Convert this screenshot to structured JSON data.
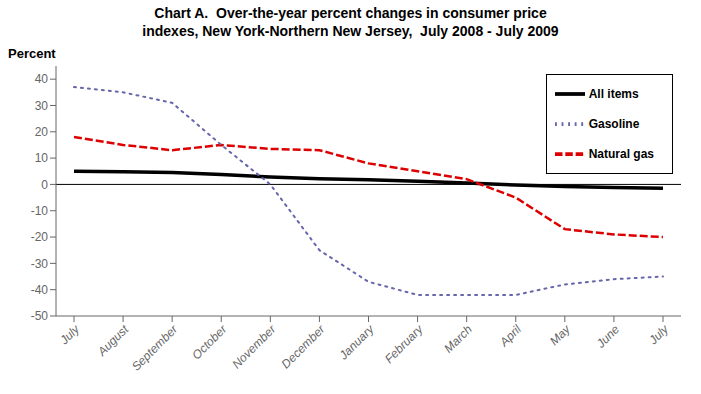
{
  "chart_data": {
    "type": "line",
    "title": "Chart A.  Over-the-year percent changes in consumer price\nindexes, New York-Northern New Jersey,  July 2008 - July 2009",
    "ylabel": "Percent",
    "categories": [
      "July",
      "August",
      "September",
      "October",
      "November",
      "December",
      "January",
      "February",
      "March",
      "April",
      "May",
      "June",
      "July"
    ],
    "series": [
      {
        "name": "All items",
        "color": "#000000",
        "line_style": "solid",
        "values": [
          5.0,
          4.8,
          4.5,
          3.8,
          2.8,
          2.2,
          1.8,
          1.2,
          0.5,
          -0.2,
          -0.8,
          -1.2,
          -1.5
        ]
      },
      {
        "name": "Natural gas",
        "color": "#dd0000",
        "line_style": "dashed",
        "values": [
          18.0,
          15.0,
          13.0,
          15.0,
          13.5,
          13.0,
          8.0,
          5.0,
          2.0,
          -5.0,
          -17.0,
          -19.0,
          -20.0
        ]
      },
      {
        "name": "Gasoline",
        "color": "#6666aa",
        "line_style": "dotted",
        "values": [
          37.0,
          35.0,
          31.0,
          15.0,
          0.0,
          -25.0,
          -37.0,
          -42.0,
          -42.0,
          -42.0,
          -38.0,
          -36.0,
          -35.0
        ]
      }
    ],
    "ylim": [
      -50,
      45
    ],
    "yticks": [
      -50,
      -40,
      -30,
      -20,
      -10,
      0,
      10,
      20,
      30,
      40
    ],
    "grid": false,
    "legend": "upper right"
  }
}
